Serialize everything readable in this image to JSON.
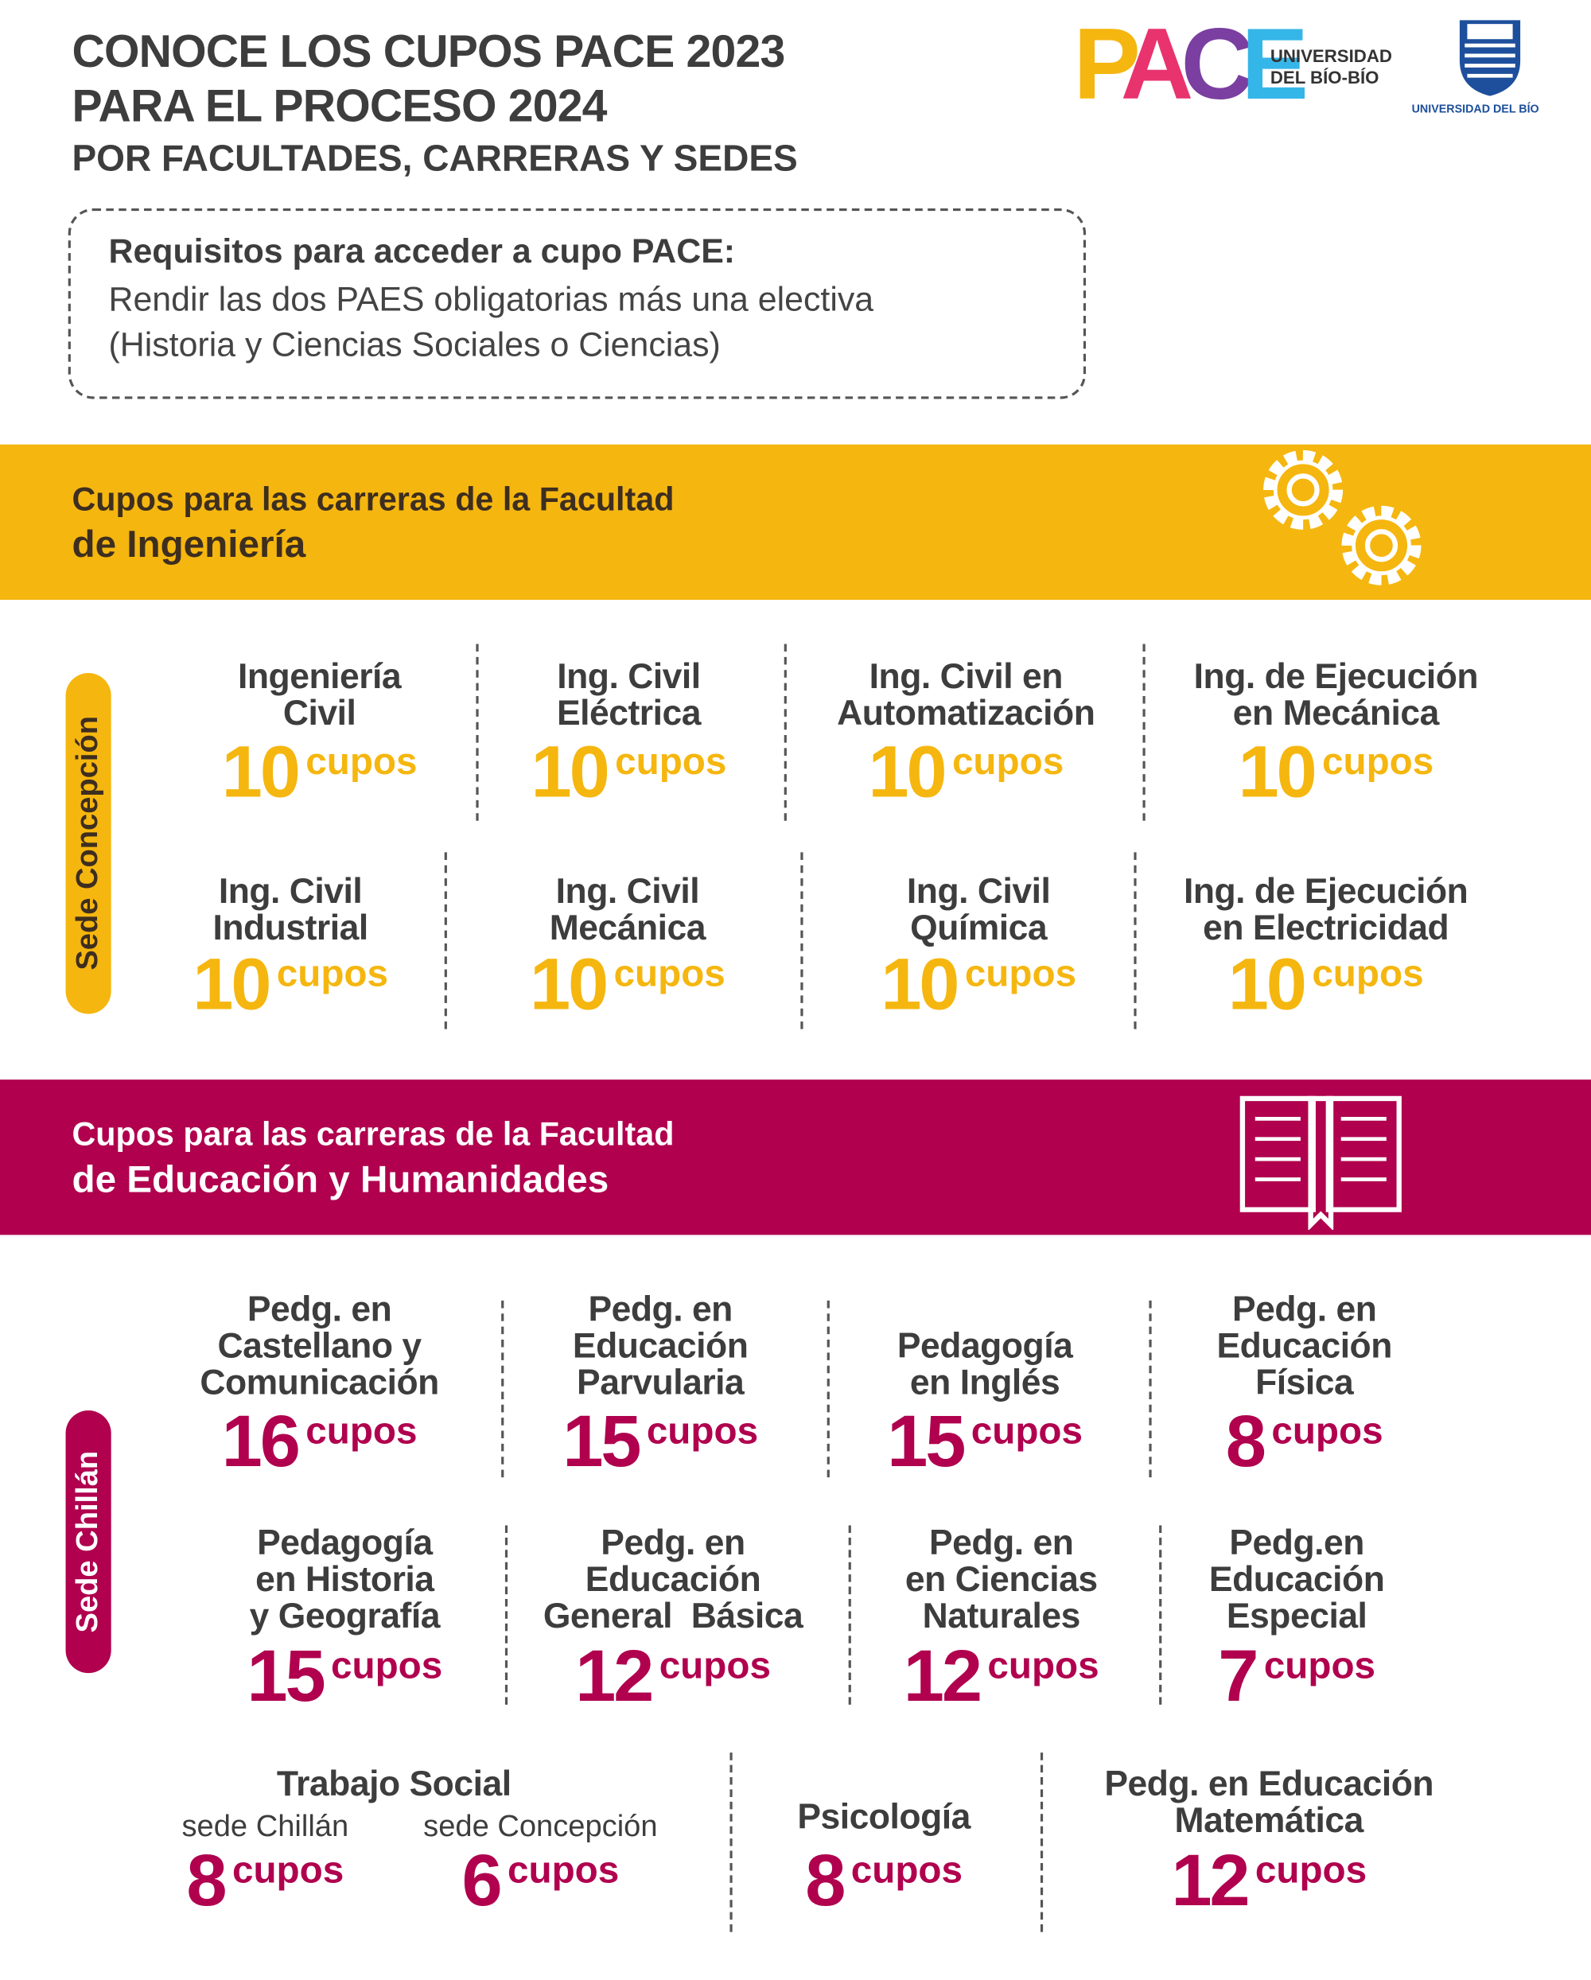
{
  "header": {
    "title_lines": [
      "CONOCE LOS CUPOS PACE 2023",
      "PARA EL PROCESO 2024"
    ],
    "subtitle": "POR FACULTADES, CARRERAS Y SEDES"
  },
  "logo": {
    "letters": [
      "P",
      "A",
      "C",
      "E"
    ],
    "university": [
      "UNIVERSIDAD",
      "DEL BÍO-BÍO"
    ],
    "shield_caption": "UNIVERSIDAD DEL BÍO"
  },
  "requirements": {
    "heading": "Requisitos para acceder a cupo PACE:",
    "lines": [
      "Rendir las dos PAES obligatorias más una electiva",
      "(Historia y Ciencias Sociales o Ciencias)"
    ]
  },
  "faculties": [
    {
      "title_lines": [
        "Cupos para las carreras de la Facultad",
        "de Ingeniería"
      ],
      "color": "#f5b60f",
      "campus": "Sede Concepción",
      "rows": [
        [
          {
            "name_lines": [
              "Ingeniería",
              "Civil"
            ],
            "quota": 10,
            "unit": "cupos"
          },
          {
            "name_lines": [
              "Ing. Civil",
              "Eléctrica"
            ],
            "quota": 10,
            "unit": "cupos"
          },
          {
            "name_lines": [
              "Ing. Civil en",
              "Automatización"
            ],
            "quota": 10,
            "unit": "cupos"
          },
          {
            "name_lines": [
              "Ing. de Ejecución",
              "en Mecánica"
            ],
            "quota": 10,
            "unit": "cupos"
          }
        ],
        [
          {
            "name_lines": [
              "Ing. Civil",
              "Industrial"
            ],
            "quota": 10,
            "unit": "cupos"
          },
          {
            "name_lines": [
              "Ing. Civil",
              "Mecánica"
            ],
            "quota": 10,
            "unit": "cupos"
          },
          {
            "name_lines": [
              "Ing. Civil",
              "Química"
            ],
            "quota": 10,
            "unit": "cupos"
          },
          {
            "name_lines": [
              "Ing. de Ejecución",
              "en Electricidad"
            ],
            "quota": 10,
            "unit": "cupos"
          }
        ]
      ]
    },
    {
      "title_lines": [
        "Cupos para las carreras de la Facultad",
        "de Educación y Humanidades"
      ],
      "color": "#b0004e",
      "campus": "Sede Chillán",
      "rows": [
        [
          {
            "name_lines": [
              "Pedg. en",
              "Castellano y",
              "Comunicación"
            ],
            "quota": 16,
            "unit": "cupos"
          },
          {
            "name_lines": [
              "Pedg. en",
              "Educación",
              "Parvularia"
            ],
            "quota": 15,
            "unit": "cupos"
          },
          {
            "name_lines": [
              "Pedagogía",
              "en Inglés"
            ],
            "quota": 15,
            "unit": "cupos"
          },
          {
            "name_lines": [
              "Pedg. en",
              "Educación",
              "Física"
            ],
            "quota": 8,
            "unit": "cupos"
          }
        ],
        [
          {
            "name_lines": [
              "Pedagogía",
              "en Historia",
              "y Geografía"
            ],
            "quota": 15,
            "unit": "cupos"
          },
          {
            "name_lines": [
              "Pedg. en",
              "Educación",
              "General  Básica"
            ],
            "quota": 12,
            "unit": "cupos"
          },
          {
            "name_lines": [
              "Pedg. en",
              "en Ciencias",
              "Naturales"
            ],
            "quota": 12,
            "unit": "cupos"
          },
          {
            "name_lines": [
              "Pedg.en",
              "Educación",
              "Especial"
            ],
            "quota": 7,
            "unit": "cupos"
          }
        ],
        [
          {
            "name_lines": [
              "Trabajo Social"
            ],
            "parts": [
              {
                "campus": "sede Chillán",
                "quota": 8,
                "unit": "cupos"
              },
              {
                "campus": "sede Concepción",
                "quota": 6,
                "unit": "cupos"
              }
            ]
          },
          {
            "name_lines": [
              "Psicología"
            ],
            "quota": 8,
            "unit": "cupos"
          },
          {
            "name_lines": [
              "Pedg. en Educación",
              "Matemática"
            ],
            "quota": 12,
            "unit": "cupos"
          }
        ]
      ]
    }
  ]
}
